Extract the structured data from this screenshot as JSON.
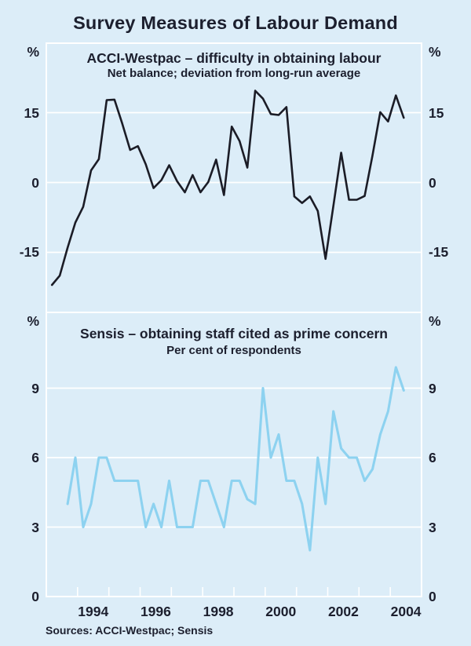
{
  "title": "Survey Measures of Labour Demand",
  "footer": {
    "sources": "Sources: ACCI-Westpac; Sensis"
  },
  "colors": {
    "background": "#dcedf8",
    "grid": "#ffffff",
    "text": "#1c1f2e",
    "acci_line": "#1b1c26",
    "sensis_line": "#8dd2f0"
  },
  "x_axis": {
    "range": [
      1993,
      2005
    ],
    "tick_years": [
      1994,
      1995,
      1996,
      1997,
      1998,
      1999,
      2000,
      2001,
      2002,
      2003,
      2004
    ],
    "labels": [
      "1994",
      "1996",
      "1998",
      "2000",
      "2002",
      "2004"
    ],
    "label_years": [
      1994,
      1996,
      1998,
      2000,
      2002,
      2004
    ]
  },
  "chart_data": [
    {
      "type": "line",
      "name": "acci-westpac",
      "title": "ACCI-Westpac – difficulty in obtaining labour",
      "subtitle": "Net balance; deviation from long-run average",
      "unit_left": "%",
      "unit_right": "%",
      "yticks": [
        15,
        0,
        -15
      ],
      "ylim": [
        -28,
        29
      ],
      "x_start": 1993.18,
      "x_step": 0.25,
      "line_width": 2.6,
      "values": [
        -22,
        -20,
        -14,
        -8.6,
        -5.2,
        2.6,
        5,
        17.7,
        17.8,
        12.6,
        7,
        7.8,
        3.9,
        -1.2,
        0.5,
        3.7,
        0.3,
        -2.1,
        1.6,
        -2.1,
        0.1,
        4.9,
        -2.7,
        12,
        8.9,
        3.2,
        19.7,
        18,
        14.7,
        14.5,
        16.2,
        -3,
        -4.4,
        -3,
        -6.1,
        -16.4,
        -5,
        6.4,
        -3.7,
        -3.7,
        -2.9,
        5.8,
        15.1,
        13.1,
        18.7,
        13.9
      ]
    },
    {
      "type": "line",
      "name": "sensis",
      "title": "Sensis – obtaining staff cited as prime concern",
      "subtitle": "Per cent of respondents",
      "unit_left": "%",
      "unit_right": "%",
      "yticks": [
        9,
        6,
        3,
        0
      ],
      "ylim": [
        0,
        12.3
      ],
      "x_start": 1993.68,
      "x_step": 0.25,
      "line_width": 3.1,
      "values": [
        4,
        6,
        3,
        4,
        6,
        6,
        5,
        5,
        5,
        5,
        3,
        4,
        3,
        5,
        3,
        3,
        3,
        5,
        5,
        4,
        3,
        5,
        5,
        4.2,
        4,
        9,
        6,
        7,
        5,
        5,
        4,
        2,
        6,
        4,
        8,
        6.4,
        6,
        6,
        5,
        5.5,
        7,
        8,
        9.9,
        8.9
      ]
    }
  ]
}
